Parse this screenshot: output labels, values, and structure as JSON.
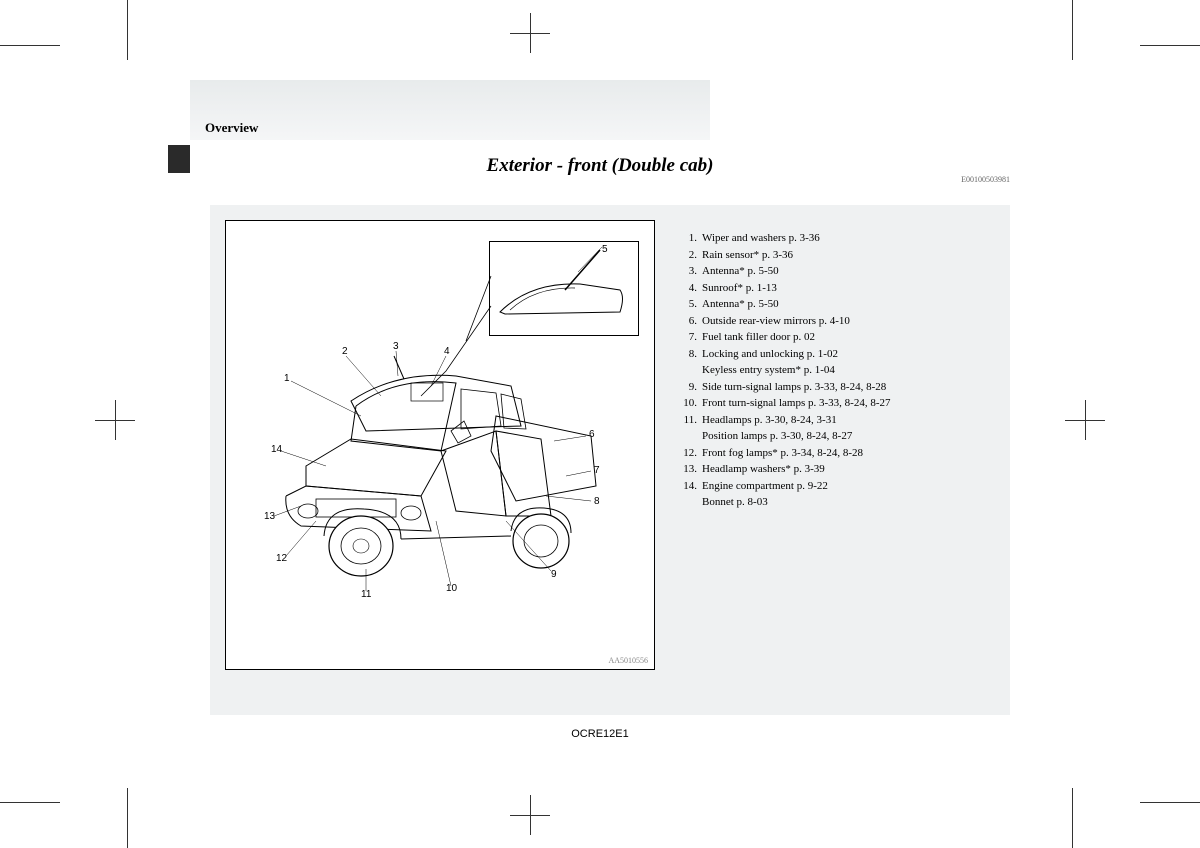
{
  "section": "Overview",
  "title": "Exterior - front (Double cab)",
  "doc_id": "E00100503981",
  "footer_code": "OCRE12E1",
  "diagram_code": "AA5010556",
  "callouts": {
    "c1": "1",
    "c2": "2",
    "c3": "3",
    "c4": "4",
    "c5": "5",
    "c6": "6",
    "c7": "7",
    "c8": "8",
    "c9": "9",
    "c10": "10",
    "c11": "11",
    "c12": "12",
    "c13": "13",
    "c14": "14"
  },
  "items": [
    {
      "n": "1.",
      "t": "Wiper and washers p. 3-36"
    },
    {
      "n": "2.",
      "t": "Rain sensor* p. 3-36"
    },
    {
      "n": "3.",
      "t": "Antenna* p. 5-50"
    },
    {
      "n": "4.",
      "t": "Sunroof* p. 1-13"
    },
    {
      "n": "5.",
      "t": "Antenna* p. 5-50"
    },
    {
      "n": "6.",
      "t": "Outside rear-view mirrors p. 4-10"
    },
    {
      "n": "7.",
      "t": "Fuel tank filler door p. 02"
    },
    {
      "n": "8.",
      "t": "Locking and unlocking p. 1-02"
    },
    {
      "n": "",
      "t": "Keyless entry system* p. 1-04",
      "indent": true
    },
    {
      "n": "9.",
      "t": "Side turn-signal lamps p. 3-33, 8-24, 8-28"
    },
    {
      "n": "10.",
      "t": "Front turn-signal lamps p. 3-33, 8-24, 8-27"
    },
    {
      "n": "11.",
      "t": "Headlamps p. 3-30, 8-24, 3-31"
    },
    {
      "n": "",
      "t": "Position lamps p. 3-30, 8-24, 8-27",
      "indent": true
    },
    {
      "n": "12.",
      "t": "Front fog lamps* p. 3-34, 8-24, 8-28"
    },
    {
      "n": "13.",
      "t": "Headlamp washers* p. 3-39"
    },
    {
      "n": "14.",
      "t": "Engine compartment p. 9-22"
    },
    {
      "n": "",
      "t": "Bonnet p. 8-03",
      "indent": true
    }
  ],
  "colors": {
    "panel": "#eff1f2",
    "header_grad_top": "#e8ebec",
    "header_grad_bot": "#f5f6f7",
    "tab": "#2a2a2a"
  }
}
